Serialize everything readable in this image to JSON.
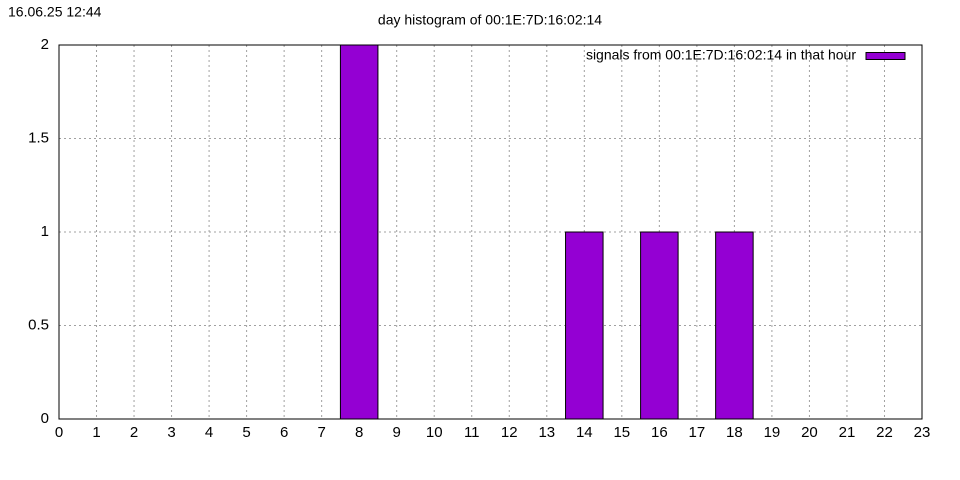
{
  "chart_data": {
    "type": "bar",
    "timestamp": "16.06.25 12:44",
    "title": "day histogram of 00:1E:7D:16:02:14",
    "x": [
      8,
      14,
      16,
      18
    ],
    "series": [
      {
        "name": "signals from 00:1E:7D:16:02:14 in that hour",
        "color": "#9400d3",
        "values": [
          2,
          1,
          1,
          1
        ]
      }
    ],
    "xlim": [
      0,
      23
    ],
    "xticks": [
      0,
      1,
      2,
      3,
      4,
      5,
      6,
      7,
      8,
      9,
      10,
      11,
      12,
      13,
      14,
      15,
      16,
      17,
      18,
      19,
      20,
      21,
      22,
      23
    ],
    "ylim": [
      0,
      2
    ],
    "yticks": [
      0,
      0.5,
      1,
      1.5,
      2
    ],
    "grid": true,
    "legend": "top-right"
  }
}
